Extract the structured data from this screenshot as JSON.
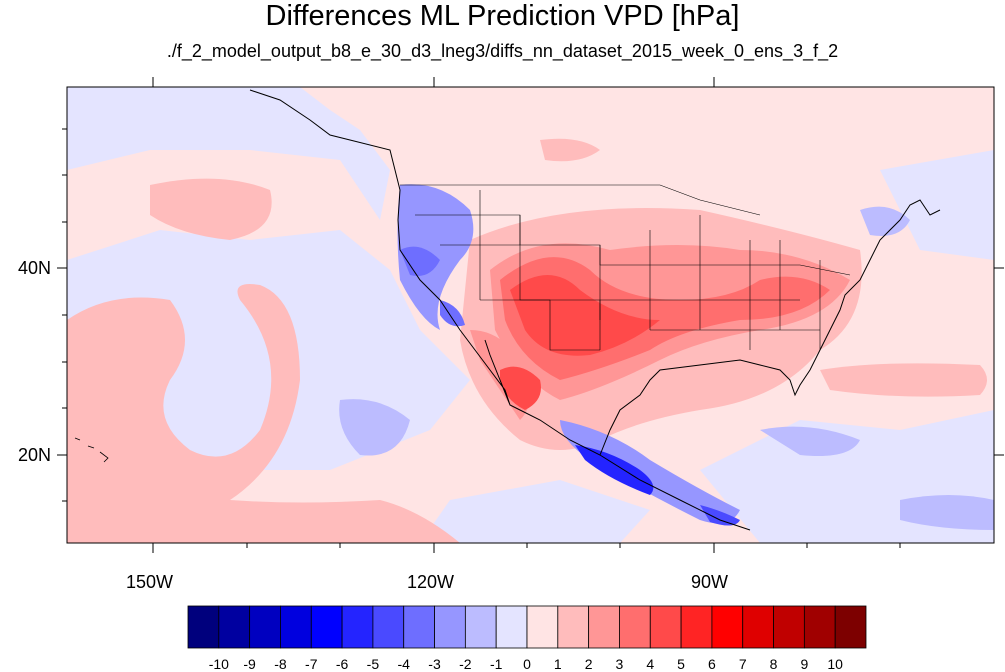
{
  "title": "Differences ML Prediction VPD [hPa]",
  "subtitle": "./f_2_model_output_b8_e_30_d3_lneg3/diffs_nn_dataset_2015_week_0_ens_3_f_2",
  "axes": {
    "x_ticks": [
      {
        "label": "150W",
        "lon": -150
      },
      {
        "label": "120W",
        "lon": -120
      },
      {
        "label": "90W",
        "lon": -90
      }
    ],
    "y_ticks": [
      {
        "label": "40N",
        "lat": 40
      },
      {
        "label": "20N",
        "lat": 20
      }
    ]
  },
  "colorbar": {
    "labels": [
      "-10",
      "-9",
      "-8",
      "-7",
      "-6",
      "-5",
      "-4",
      "-3",
      "-2",
      "-1",
      "0",
      "1",
      "2",
      "3",
      "4",
      "5",
      "6",
      "7",
      "8",
      "9",
      "10"
    ],
    "colors": [
      "#00007d",
      "#0000a0",
      "#0000c0",
      "#0000df",
      "#0000ff",
      "#2424ff",
      "#4a4aff",
      "#6e6eff",
      "#9696ff",
      "#bcbcff",
      "#e4e4ff",
      "#ffe4e4",
      "#ffbcbc",
      "#ff9696",
      "#ff6e6e",
      "#ff4a4a",
      "#ff2424",
      "#ff0000",
      "#df0000",
      "#c00000",
      "#a00000",
      "#7d0000"
    ]
  }
}
